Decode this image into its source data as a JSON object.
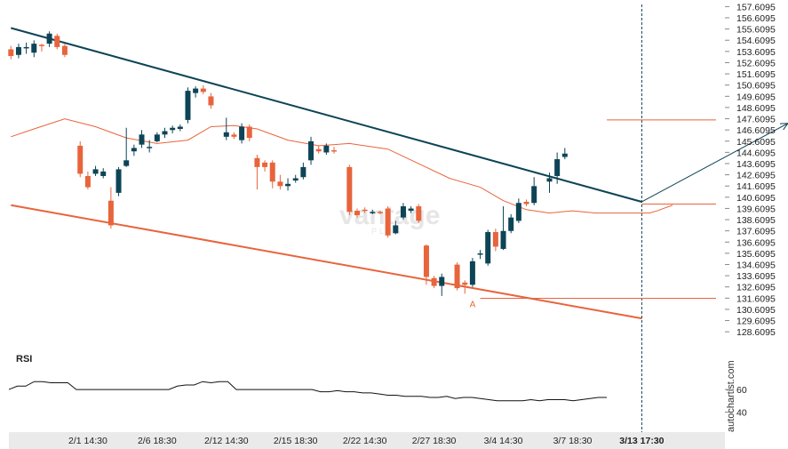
{
  "chart_data": {
    "type": "candlestick",
    "title": "",
    "y_ticks": [
      "157.6095",
      "156.6095",
      "155.6095",
      "154.6095",
      "153.6095",
      "152.6095",
      "151.6095",
      "150.6095",
      "149.6095",
      "148.6095",
      "147.6095",
      "146.6095",
      "145.6095",
      "144.6095",
      "143.6095",
      "142.6095",
      "141.6095",
      "140.6095",
      "139.6095",
      "138.6095",
      "137.6095",
      "136.6095",
      "135.6095",
      "134.6095",
      "133.6095",
      "132.6095",
      "131.6095",
      "130.6095",
      "129.6095",
      "128.6095"
    ],
    "ylim": [
      127.75,
      157.8
    ],
    "x_ticks": [
      {
        "label": "2/1 14:30",
        "i": 10
      },
      {
        "label": "2/6 18:30",
        "i": 19
      },
      {
        "label": "2/12 14:30",
        "i": 28
      },
      {
        "label": "2/15 18:30",
        "i": 37
      },
      {
        "label": "2/22 14:30",
        "i": 46
      },
      {
        "label": "2/27 18:30",
        "i": 55
      },
      {
        "label": "3/4 14:30",
        "i": 64
      },
      {
        "label": "3/7 18:30",
        "i": 73
      },
      {
        "label": "3/13 17:30",
        "i": 82,
        "bold": true
      }
    ],
    "candles": [
      [
        153.8,
        153.2,
        154.1,
        152.9
      ],
      [
        153.3,
        154.0,
        154.3,
        153.0
      ],
      [
        154.0,
        154.0,
        154.4,
        153.4
      ],
      [
        153.5,
        154.3,
        154.6,
        153.1
      ],
      [
        154.2,
        154.1,
        154.3,
        153.6
      ],
      [
        154.3,
        155.2,
        155.4,
        154.0
      ],
      [
        155.0,
        154.0,
        155.2,
        153.8
      ],
      [
        154.1,
        153.3,
        154.3,
        153.1
      ],
      [
        null,
        null,
        null,
        null
      ],
      [
        145.2,
        142.7,
        145.6,
        142.4
      ],
      [
        142.5,
        141.5,
        142.9,
        141.3
      ],
      [
        142.7,
        143.1,
        143.4,
        142.5
      ],
      [
        142.5,
        142.9,
        143.2,
        142.3
      ],
      [
        140.3,
        138.1,
        141.5,
        137.8
      ],
      [
        141.0,
        143.1,
        143.3,
        140.7
      ],
      [
        143.4,
        143.9,
        146.8,
        143.3
      ],
      [
        144.7,
        145.0,
        145.3,
        144.3
      ],
      [
        145.3,
        146.2,
        146.6,
        145.0
      ],
      [
        145.0,
        145.1,
        145.7,
        144.6
      ],
      [
        145.6,
        146.2,
        146.4,
        145.5
      ],
      [
        146.2,
        146.5,
        146.8,
        145.9
      ],
      [
        146.6,
        146.8,
        147.0,
        146.3
      ],
      [
        146.7,
        146.9,
        147.1,
        146.5
      ],
      [
        147.5,
        150.1,
        150.4,
        147.2
      ],
      [
        149.9,
        150.3,
        150.5,
        149.5
      ],
      [
        150.3,
        150.0,
        150.6,
        149.8
      ],
      [
        149.6,
        148.8,
        149.9,
        148.5
      ],
      [
        null,
        null,
        null,
        null
      ],
      [
        146.0,
        146.4,
        147.7,
        145.7
      ],
      [
        146.2,
        146.0,
        146.4,
        145.8
      ],
      [
        145.7,
        146.9,
        147.2,
        145.4
      ],
      [
        146.9,
        145.9,
        147.1,
        145.6
      ],
      [
        144.1,
        143.3,
        144.4,
        141.3
      ],
      [
        143.7,
        143.3,
        143.9,
        142.9
      ],
      [
        143.7,
        142.0,
        143.9,
        141.4
      ],
      [
        142.0,
        141.6,
        142.6,
        141.3
      ],
      [
        141.6,
        141.8,
        142.3,
        141.2
      ],
      [
        142.1,
        142.3,
        142.6,
        141.9
      ],
      [
        142.4,
        143.3,
        143.7,
        142.2
      ],
      [
        143.9,
        145.6,
        146.0,
        143.5
      ],
      [
        144.9,
        144.7,
        145.2,
        144.5
      ],
      [
        144.6,
        145.2,
        145.4,
        144.4
      ],
      [
        144.8,
        144.7,
        145.1,
        144.5
      ],
      [
        null,
        null,
        null,
        null
      ],
      [
        143.3,
        139.3,
        143.5,
        139.0
      ],
      [
        139.4,
        139.0,
        139.6,
        138.8
      ],
      [
        139.5,
        139.4,
        139.7,
        139.2
      ],
      [
        139.3,
        139.3,
        139.5,
        139.1
      ],
      [
        139.3,
        139.2,
        139.4,
        139.1
      ],
      [
        139.6,
        137.2,
        139.8,
        137.0
      ],
      [
        137.4,
        138.1,
        138.5,
        137.3
      ],
      [
        138.8,
        139.8,
        140.1,
        138.6
      ],
      [
        139.4,
        139.6,
        139.8,
        139.2
      ],
      [
        139.8,
        138.5,
        140.0,
        138.3
      ],
      [
        136.3,
        133.5,
        136.4,
        132.8
      ],
      [
        133.4,
        132.7,
        133.6,
        132.5
      ],
      [
        132.7,
        133.5,
        133.8,
        131.8
      ],
      [
        null,
        null,
        null,
        null
      ],
      [
        134.6,
        132.5,
        134.8,
        132.3
      ],
      [
        133.0,
        132.8,
        133.2,
        132.0
      ],
      [
        132.8,
        134.9,
        135.2,
        132.6
      ],
      [
        135.6,
        135.6,
        135.9,
        135.1
      ],
      [
        134.7,
        137.5,
        137.7,
        134.5
      ],
      [
        137.5,
        136.2,
        137.8,
        135.8
      ],
      [
        136.0,
        137.6,
        139.8,
        135.9
      ],
      [
        137.6,
        138.8,
        139.1,
        137.4
      ],
      [
        138.5,
        140.1,
        140.5,
        138.3
      ],
      [
        140.2,
        140.0,
        140.4,
        139.8
      ],
      [
        140.1,
        141.6,
        142.4,
        139.9
      ],
      [
        null,
        null,
        null,
        null
      ],
      [
        142.0,
        142.3,
        142.8,
        141.0
      ],
      [
        142.5,
        144.0,
        144.6,
        141.8
      ],
      [
        144.2,
        144.5,
        145.0,
        144.0
      ]
    ],
    "moving_average": [
      [
        0,
        146.0
      ],
      [
        3,
        146.7
      ],
      [
        7,
        147.6
      ],
      [
        11,
        146.9
      ],
      [
        15,
        145.9
      ],
      [
        19,
        145.4
      ],
      [
        23,
        145.7
      ],
      [
        26,
        146.9
      ],
      [
        29,
        147.0
      ],
      [
        32,
        146.7
      ],
      [
        36,
        145.7
      ],
      [
        40,
        145.2
      ],
      [
        44,
        145.4
      ],
      [
        49,
        144.9
      ],
      [
        53,
        143.6
      ],
      [
        57,
        142.3
      ],
      [
        61,
        141.5
      ],
      [
        64,
        140.3
      ],
      [
        67,
        139.5
      ],
      [
        70,
        139.2
      ],
      [
        73,
        139.4
      ],
      [
        76,
        139.2
      ],
      [
        80,
        139.2
      ],
      [
        83,
        139.2
      ],
      [
        84,
        139.4
      ],
      [
        86,
        139.9
      ]
    ],
    "channel_upper": {
      "from": [
        0,
        155.7
      ],
      "to": [
        82,
        140.2
      ]
    },
    "channel_lower": {
      "from": [
        0,
        139.9
      ],
      "to": [
        82,
        129.8
      ]
    },
    "point_a": {
      "label": "A",
      "value": 131.6
    },
    "target_level": 147.5,
    "breakout_level": 140.0,
    "arrow": {
      "from": [
        82,
        140.2
      ],
      "to": [
        101,
        147.2
      ]
    },
    "signal_index": 82,
    "rsi": {
      "label": "RSI",
      "ticks": [
        "60",
        "40"
      ],
      "ylim": [
        27,
        90
      ],
      "values": [
        60,
        63,
        63,
        67,
        67,
        66,
        66,
        66,
        60,
        60,
        60,
        60,
        60,
        60,
        60,
        60,
        60,
        60,
        60,
        60,
        63,
        64,
        64,
        67,
        66,
        67,
        67,
        60,
        60,
        60,
        60,
        60,
        60,
        60,
        60,
        60,
        60,
        58,
        58,
        59,
        58,
        58,
        57,
        57,
        56,
        55,
        55,
        54,
        54,
        54,
        53,
        53,
        54,
        52,
        53,
        53,
        52,
        51,
        50,
        50,
        50,
        50,
        51,
        50,
        51,
        51,
        51,
        50,
        51,
        52,
        53,
        53
      ]
    },
    "watermark": {
      "brand": "vantage",
      "sub": "PLUS",
      "side": "autochartist.com"
    }
  }
}
